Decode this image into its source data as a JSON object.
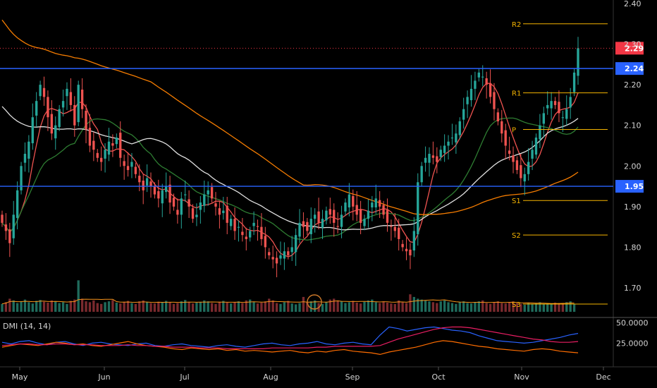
{
  "chart_data": {
    "type": "candlestick",
    "price_axis": {
      "ylim": [
        1.65,
        2.4
      ],
      "tick_labels": [
        "2.40",
        "2.30",
        "2.20",
        "2.10",
        "2.00",
        "1.90",
        "1.80",
        "1.70"
      ],
      "tick_values": [
        2.4,
        2.3,
        2.2,
        2.1,
        2.0,
        1.9,
        1.8,
        1.7
      ]
    },
    "x_axis": {
      "tick_labels": [
        "May",
        "Jun",
        "Jul",
        "Aug",
        "Sep",
        "Oct",
        "Nov",
        "Dec"
      ]
    },
    "horizontal_lines": [
      {
        "value": 2.24,
        "label": "2.24",
        "color": "#2962ff"
      },
      {
        "value": 1.95,
        "label": "1.95",
        "color": "#2962ff"
      }
    ],
    "last_price": {
      "value": 2.29,
      "label": "2.29",
      "color": "#f23645"
    },
    "pivots": [
      {
        "label": "R2",
        "value": 2.35
      },
      {
        "label": "R1",
        "value": 2.18
      },
      {
        "label": "P",
        "value": 2.09
      },
      {
        "label": "S1",
        "value": 1.915
      },
      {
        "label": "S2",
        "value": 1.83
      },
      {
        "label": "S3",
        "value": 1.66
      }
    ],
    "pivot_color": "#f5b400",
    "close_series": [
      1.86,
      1.84,
      1.81,
      1.88,
      1.94,
      2.0,
      2.03,
      2.06,
      2.12,
      2.16,
      2.2,
      2.17,
      2.12,
      2.08,
      2.1,
      2.14,
      2.16,
      2.19,
      2.15,
      2.1,
      2.2,
      2.14,
      2.09,
      2.05,
      2.04,
      2.02,
      2.01,
      2.04,
      2.06,
      2.05,
      2.07,
      2.02,
      2.0,
      1.99,
      2.01,
      1.98,
      1.96,
      1.94,
      1.97,
      1.95,
      1.93,
      1.92,
      1.94,
      1.95,
      1.91,
      1.9,
      1.88,
      1.92,
      1.93,
      1.9,
      1.87,
      1.88,
      1.91,
      1.93,
      1.94,
      1.92,
      1.9,
      1.88,
      1.89,
      1.86,
      1.87,
      1.84,
      1.85,
      1.83,
      1.82,
      1.84,
      1.86,
      1.85,
      1.82,
      1.8,
      1.78,
      1.77,
      1.76,
      1.78,
      1.79,
      1.78,
      1.8,
      1.83,
      1.86,
      1.85,
      1.84,
      1.87,
      1.88,
      1.86,
      1.87,
      1.89,
      1.88,
      1.86,
      1.85,
      1.88,
      1.91,
      1.93,
      1.9,
      1.88,
      1.86,
      1.87,
      1.89,
      1.91,
      1.92,
      1.9,
      1.88,
      1.86,
      1.85,
      1.84,
      1.82,
      1.8,
      1.79,
      1.78,
      1.84,
      1.96,
      2.0,
      2.02,
      2.03,
      2.02,
      2.01,
      2.04,
      2.05,
      2.06,
      2.07,
      2.08,
      2.11,
      2.14,
      2.17,
      2.19,
      2.21,
      2.23,
      2.22,
      2.2,
      2.17,
      2.14,
      2.11,
      2.08,
      2.05,
      2.03,
      2.01,
      1.99,
      1.97,
      1.98,
      2.01,
      2.04,
      2.07,
      2.1,
      2.13,
      2.15,
      2.16,
      2.15,
      2.13,
      2.12,
      2.14,
      2.17,
      2.23,
      2.29
    ],
    "volume_series": [
      18,
      22,
      30,
      26,
      20,
      24,
      28,
      22,
      19,
      25,
      27,
      23,
      21,
      26,
      24,
      20,
      22,
      18,
      25,
      28,
      72,
      30,
      24,
      22,
      26,
      20,
      18,
      22,
      24,
      27,
      21,
      19,
      23,
      25,
      20,
      18,
      24,
      26,
      22,
      20,
      19,
      23,
      21,
      25,
      22,
      18,
      20,
      24,
      27,
      23,
      19,
      21,
      22,
      26,
      24,
      20,
      18,
      23,
      25,
      21,
      19,
      22,
      24,
      20,
      26,
      28,
      22,
      19,
      21,
      24,
      30,
      26,
      20,
      18,
      22,
      25,
      19,
      17,
      20,
      34,
      22,
      24,
      26,
      20,
      18,
      22,
      28,
      30,
      26,
      24,
      20,
      22,
      25,
      21,
      19,
      23,
      26,
      28,
      22,
      20,
      24,
      21,
      19,
      18,
      26,
      22,
      20,
      40,
      34,
      30,
      28,
      26,
      24,
      22,
      20,
      24,
      26,
      22,
      20,
      18,
      22,
      24,
      20,
      19,
      22,
      24,
      26,
      20,
      18,
      22,
      24,
      20,
      19,
      22,
      24,
      20,
      18,
      16,
      20,
      18,
      20,
      22,
      18,
      17,
      19,
      21,
      20,
      18,
      22,
      24,
      18
    ],
    "indicator": {
      "title": "DMI (14, 14)",
      "tick_labels": [
        "50.0000",
        "25.0000"
      ],
      "tick_values": [
        50,
        25
      ],
      "ylim": [
        0,
        55
      ],
      "series": [
        {
          "color": "#2962ff",
          "values": [
            26,
            24,
            27,
            28,
            25,
            23,
            26,
            27,
            24,
            22,
            25,
            26,
            24,
            23,
            22,
            24,
            25,
            22,
            21,
            23,
            24,
            22,
            21,
            20,
            22,
            23,
            21,
            20,
            22,
            24,
            25,
            23,
            22,
            24,
            25,
            27,
            24,
            23,
            25,
            26,
            24,
            23,
            35,
            45,
            43,
            40,
            42,
            44,
            45,
            43,
            41,
            40,
            38,
            34,
            31,
            28,
            27,
            26,
            25,
            26,
            28,
            30,
            32,
            35,
            37
          ]
        },
        {
          "color": "#ff6d00",
          "values": [
            20,
            22,
            24,
            23,
            22,
            24,
            26,
            25,
            23,
            24,
            22,
            21,
            23,
            25,
            27,
            24,
            22,
            21,
            20,
            18,
            17,
            19,
            18,
            17,
            18,
            16,
            17,
            15,
            16,
            15,
            14,
            15,
            16,
            14,
            13,
            15,
            14,
            16,
            17,
            15,
            14,
            13,
            11,
            14,
            16,
            18,
            20,
            23,
            26,
            28,
            27,
            25,
            23,
            21,
            20,
            18,
            17,
            16,
            15,
            17,
            18,
            17,
            15,
            14,
            13
          ]
        },
        {
          "color": "#e91e63",
          "values": [
            22,
            23,
            24,
            24,
            23,
            23,
            24,
            24,
            23,
            23,
            23,
            22,
            22,
            22,
            23,
            22,
            22,
            21,
            21,
            20,
            20,
            20,
            19,
            19,
            19,
            18,
            18,
            18,
            18,
            18,
            19,
            19,
            19,
            19,
            19,
            20,
            20,
            21,
            21,
            21,
            21,
            21,
            22,
            26,
            30,
            33,
            36,
            39,
            42,
            44,
            45,
            45,
            44,
            42,
            40,
            38,
            36,
            34,
            32,
            30,
            29,
            27,
            26,
            26,
            27
          ]
        }
      ]
    }
  }
}
